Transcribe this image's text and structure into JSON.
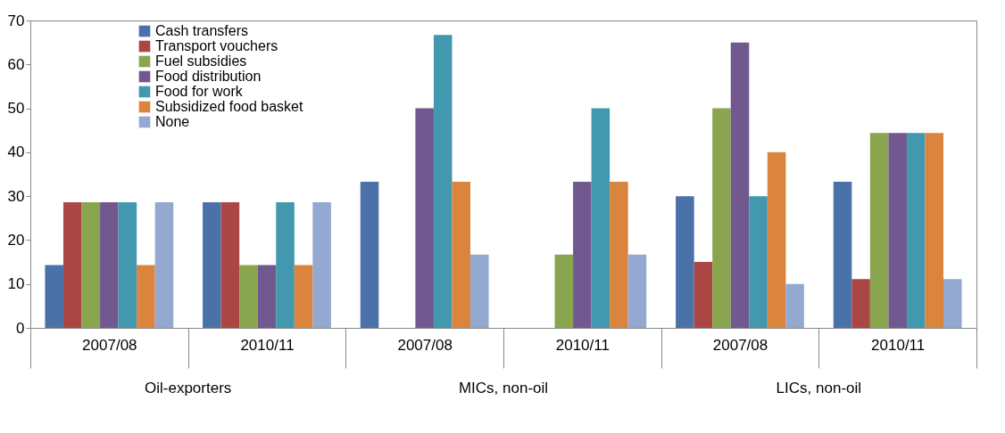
{
  "chart_data": {
    "type": "bar",
    "categories": [
      "2007/08",
      "2010/11",
      "2007/08",
      "2010/11",
      "2007/08",
      "2010/11"
    ],
    "annotations": [
      "Oil-exporters",
      "MICs, non-oil",
      "LICs, non-oil"
    ],
    "series": [
      {
        "name": "Cash transfers",
        "color": "#4a72a9",
        "values": [
          14.3,
          28.6,
          33.3,
          0,
          30,
          33.3
        ]
      },
      {
        "name": "Transport vouchers",
        "color": "#aa4643",
        "values": [
          28.6,
          28.6,
          0,
          0,
          15,
          11.1
        ]
      },
      {
        "name": "Fuel subsidies",
        "color": "#89a54e",
        "values": [
          28.6,
          14.3,
          0,
          16.7,
          50,
          44.4
        ]
      },
      {
        "name": "Food distribution",
        "color": "#71588f",
        "values": [
          28.6,
          14.3,
          50,
          33.3,
          65,
          44.4
        ]
      },
      {
        "name": "Food for work",
        "color": "#4198af",
        "values": [
          28.6,
          28.6,
          66.7,
          50,
          30,
          44.4
        ]
      },
      {
        "name": "Subsidized food basket",
        "color": "#db843d",
        "values": [
          14.3,
          14.3,
          33.3,
          33.3,
          40,
          44.4
        ]
      },
      {
        "name": "None",
        "color": "#93a9cf",
        "values": [
          28.6,
          28.6,
          16.7,
          16.7,
          10,
          11.1
        ]
      }
    ],
    "ylim": [
      0,
      70
    ],
    "yticks": [
      0,
      10,
      20,
      30,
      40,
      50,
      60,
      70
    ],
    "grid": false,
    "legend": "top left"
  }
}
